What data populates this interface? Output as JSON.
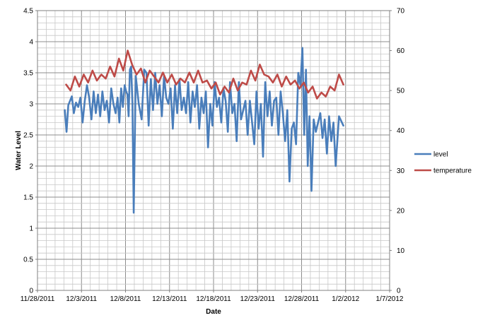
{
  "chart_data": {
    "type": "line",
    "title": "",
    "xlabel": "Date",
    "ylabel": "Water Level",
    "y2label": "",
    "xlim": [
      "11/28/2011",
      "1/7/2012"
    ],
    "ylim": [
      0,
      4.5
    ],
    "y2lim": [
      0,
      70
    ],
    "x_ticks": [
      "11/28/2011",
      "12/3/2011",
      "12/8/2011",
      "12/13/2011",
      "12/18/2011",
      "12/23/2011",
      "12/28/2011",
      "1/2/2012",
      "1/7/2012"
    ],
    "y_ticks": [
      "0",
      "0.5",
      "1",
      "1.5",
      "2",
      "2.5",
      "3",
      "3.5",
      "4",
      "4.5"
    ],
    "y2_ticks": [
      "0",
      "10",
      "20",
      "30",
      "40",
      "50",
      "60",
      "70"
    ],
    "grid": true,
    "legend_position": "right",
    "series": [
      {
        "name": "level",
        "axis": "left",
        "color": "#4a7ebb",
        "x": [
          "12/1/2011",
          "12/1/2011",
          "12/1/2011",
          "12/1/2011",
          "12/1/2011",
          "12/2/2011",
          "12/2/2011",
          "12/2/2011",
          "12/2/2011",
          "12/3/2011",
          "12/3/2011",
          "12/3/2011",
          "12/3/2011",
          "12/4/2011",
          "12/4/2011",
          "12/4/2011",
          "12/4/2011",
          "12/5/2011",
          "12/5/2011",
          "12/5/2011",
          "12/5/2011",
          "12/6/2011",
          "12/6/2011",
          "12/6/2011",
          "12/6/2011",
          "12/7/2011",
          "12/7/2011",
          "12/7/2011",
          "12/7/2011",
          "12/7/2011",
          "12/8/2011",
          "12/8/2011",
          "12/8/2011",
          "12/8/2011",
          "12/8/2011",
          "12/8/2011",
          "12/8/2011",
          "12/9/2011",
          "12/9/2011",
          "12/9/2011",
          "12/10/2011",
          "12/10/2011",
          "12/10/2011",
          "12/10/2011",
          "12/11/2011",
          "12/11/2011",
          "12/11/2011",
          "12/11/2011",
          "12/12/2011",
          "12/12/2011",
          "12/12/2011",
          "12/12/2011",
          "12/13/2011",
          "12/13/2011",
          "12/13/2011",
          "12/13/2011",
          "12/14/2011",
          "12/14/2011",
          "12/14/2011",
          "12/14/2011",
          "12/15/2011",
          "12/15/2011",
          "12/15/2011",
          "12/15/2011",
          "12/16/2011",
          "12/16/2011",
          "12/16/2011",
          "12/16/2011",
          "12/17/2011",
          "12/17/2011",
          "12/17/2011",
          "12/17/2011",
          "12/18/2011",
          "12/18/2011",
          "12/18/2011",
          "12/18/2011",
          "12/19/2011",
          "12/19/2011",
          "12/19/2011",
          "12/19/2011",
          "12/20/2011",
          "12/20/2011",
          "12/20/2011",
          "12/20/2011",
          "12/21/2011",
          "12/21/2011",
          "12/21/2011",
          "12/21/2011",
          "12/22/2011",
          "12/22/2011",
          "12/22/2011",
          "12/22/2011",
          "12/23/2011",
          "12/23/2011",
          "12/23/2011",
          "12/23/2011",
          "12/24/2011",
          "12/24/2011",
          "12/24/2011",
          "12/24/2011",
          "12/25/2011",
          "12/25/2011",
          "12/25/2011",
          "12/25/2011",
          "12/26/2011",
          "12/26/2011",
          "12/26/2011",
          "12/26/2011",
          "12/27/2011",
          "12/27/2011",
          "12/27/2011",
          "12/27/2011",
          "12/28/2011",
          "12/28/2011",
          "12/28/2011",
          "12/28/2011",
          "12/28/2011",
          "12/29/2011",
          "12/29/2011",
          "12/29/2011",
          "12/29/2011",
          "12/30/2011",
          "12/30/2011",
          "12/30/2011",
          "12/30/2011",
          "12/31/2011",
          "12/31/2011",
          "12/31/2011",
          "12/31/2011",
          "1/1/2012",
          "1/1/2012"
        ],
        "values": [
          2.9,
          2.55,
          2.98,
          3.05,
          3.12,
          2.85,
          3.02,
          2.95,
          3.1,
          2.7,
          3.05,
          3.3,
          3.1,
          2.75,
          3.2,
          2.85,
          3.15,
          2.8,
          3.2,
          2.9,
          3.05,
          2.7,
          3.25,
          3.0,
          2.85,
          3.1,
          2.7,
          3.25,
          2.95,
          3.3,
          3.2,
          3.15,
          2.8,
          3.55,
          3.6,
          3.0,
          1.25,
          3.45,
          3.0,
          2.75,
          3.55,
          3.5,
          2.65,
          3.4,
          2.9,
          3.5,
          3.0,
          3.3,
          2.8,
          3.45,
          3.1,
          3.0,
          3.25,
          2.6,
          3.3,
          2.85,
          3.4,
          2.9,
          3.1,
          2.85,
          3.35,
          2.7,
          3.2,
          2.95,
          3.3,
          2.6,
          3.1,
          2.85,
          3.2,
          2.3,
          3.0,
          2.65,
          3.35,
          2.95,
          3.1,
          2.7,
          3.25,
          3.05,
          2.55,
          3.35,
          2.85,
          3.0,
          2.4,
          3.35,
          2.75,
          2.9,
          3.05,
          2.5,
          3.05,
          2.7,
          2.35,
          3.2,
          2.6,
          3.0,
          2.15,
          3.35,
          2.8,
          3.2,
          2.65,
          3.05,
          3.1,
          2.5,
          3.2,
          2.85,
          2.4,
          2.9,
          1.75,
          2.6,
          2.7,
          2.35,
          3.5,
          3.3,
          3.9,
          2.5,
          3.55,
          2.0,
          2.8,
          1.6,
          2.75,
          2.55,
          2.7,
          2.85,
          2.45,
          2.75,
          2.2,
          2.8,
          2.4,
          2.7,
          2.0,
          2.8,
          2.65
        ]
      },
      {
        "name": "temperature",
        "axis": "right",
        "color": "#be4b48",
        "x": [
          "12/1/2011",
          "12/1/2011",
          "12/2/2011",
          "12/2/2011",
          "12/3/2011",
          "12/3/2011",
          "12/4/2011",
          "12/4/2011",
          "12/5/2011",
          "12/5/2011",
          "12/6/2011",
          "12/6/2011",
          "12/7/2011",
          "12/7/2011",
          "12/8/2011",
          "12/8/2011",
          "12/9/2011",
          "12/9/2011",
          "12/10/2011",
          "12/10/2011",
          "12/11/2011",
          "12/11/2011",
          "12/12/2011",
          "12/12/2011",
          "12/13/2011",
          "12/13/2011",
          "12/14/2011",
          "12/14/2011",
          "12/15/2011",
          "12/15/2011",
          "12/16/2011",
          "12/16/2011",
          "12/17/2011",
          "12/17/2011",
          "12/18/2011",
          "12/18/2011",
          "12/19/2011",
          "12/19/2011",
          "12/20/2011",
          "12/20/2011",
          "12/21/2011",
          "12/21/2011",
          "12/22/2011",
          "12/22/2011",
          "12/23/2011",
          "12/23/2011",
          "12/24/2011",
          "12/24/2011",
          "12/25/2011",
          "12/25/2011",
          "12/26/2011",
          "12/26/2011",
          "12/27/2011",
          "12/27/2011",
          "12/28/2011",
          "12/28/2011",
          "12/29/2011",
          "12/29/2011",
          "12/30/2011",
          "12/30/2011",
          "12/31/2011",
          "12/31/2011",
          "1/1/2012",
          "1/1/2012"
        ],
        "values": [
          51.5,
          50,
          53.5,
          51,
          54,
          52,
          55,
          52.5,
          54,
          53,
          56,
          53.5,
          58,
          55,
          60,
          56.5,
          54,
          55.5,
          52,
          55,
          53.5,
          52,
          54.5,
          52,
          54,
          51.5,
          53,
          52,
          54.5,
          52,
          55,
          52,
          52.5,
          50.5,
          52,
          49,
          51,
          49.5,
          53,
          50,
          52,
          51.5,
          55,
          52.5,
          56.5,
          54,
          53.5,
          52,
          54,
          51,
          53.5,
          51.5,
          52.5,
          50.5,
          52,
          49.5,
          51,
          48,
          49.5,
          48.5,
          51,
          50,
          54,
          51.5
        ]
      }
    ]
  }
}
